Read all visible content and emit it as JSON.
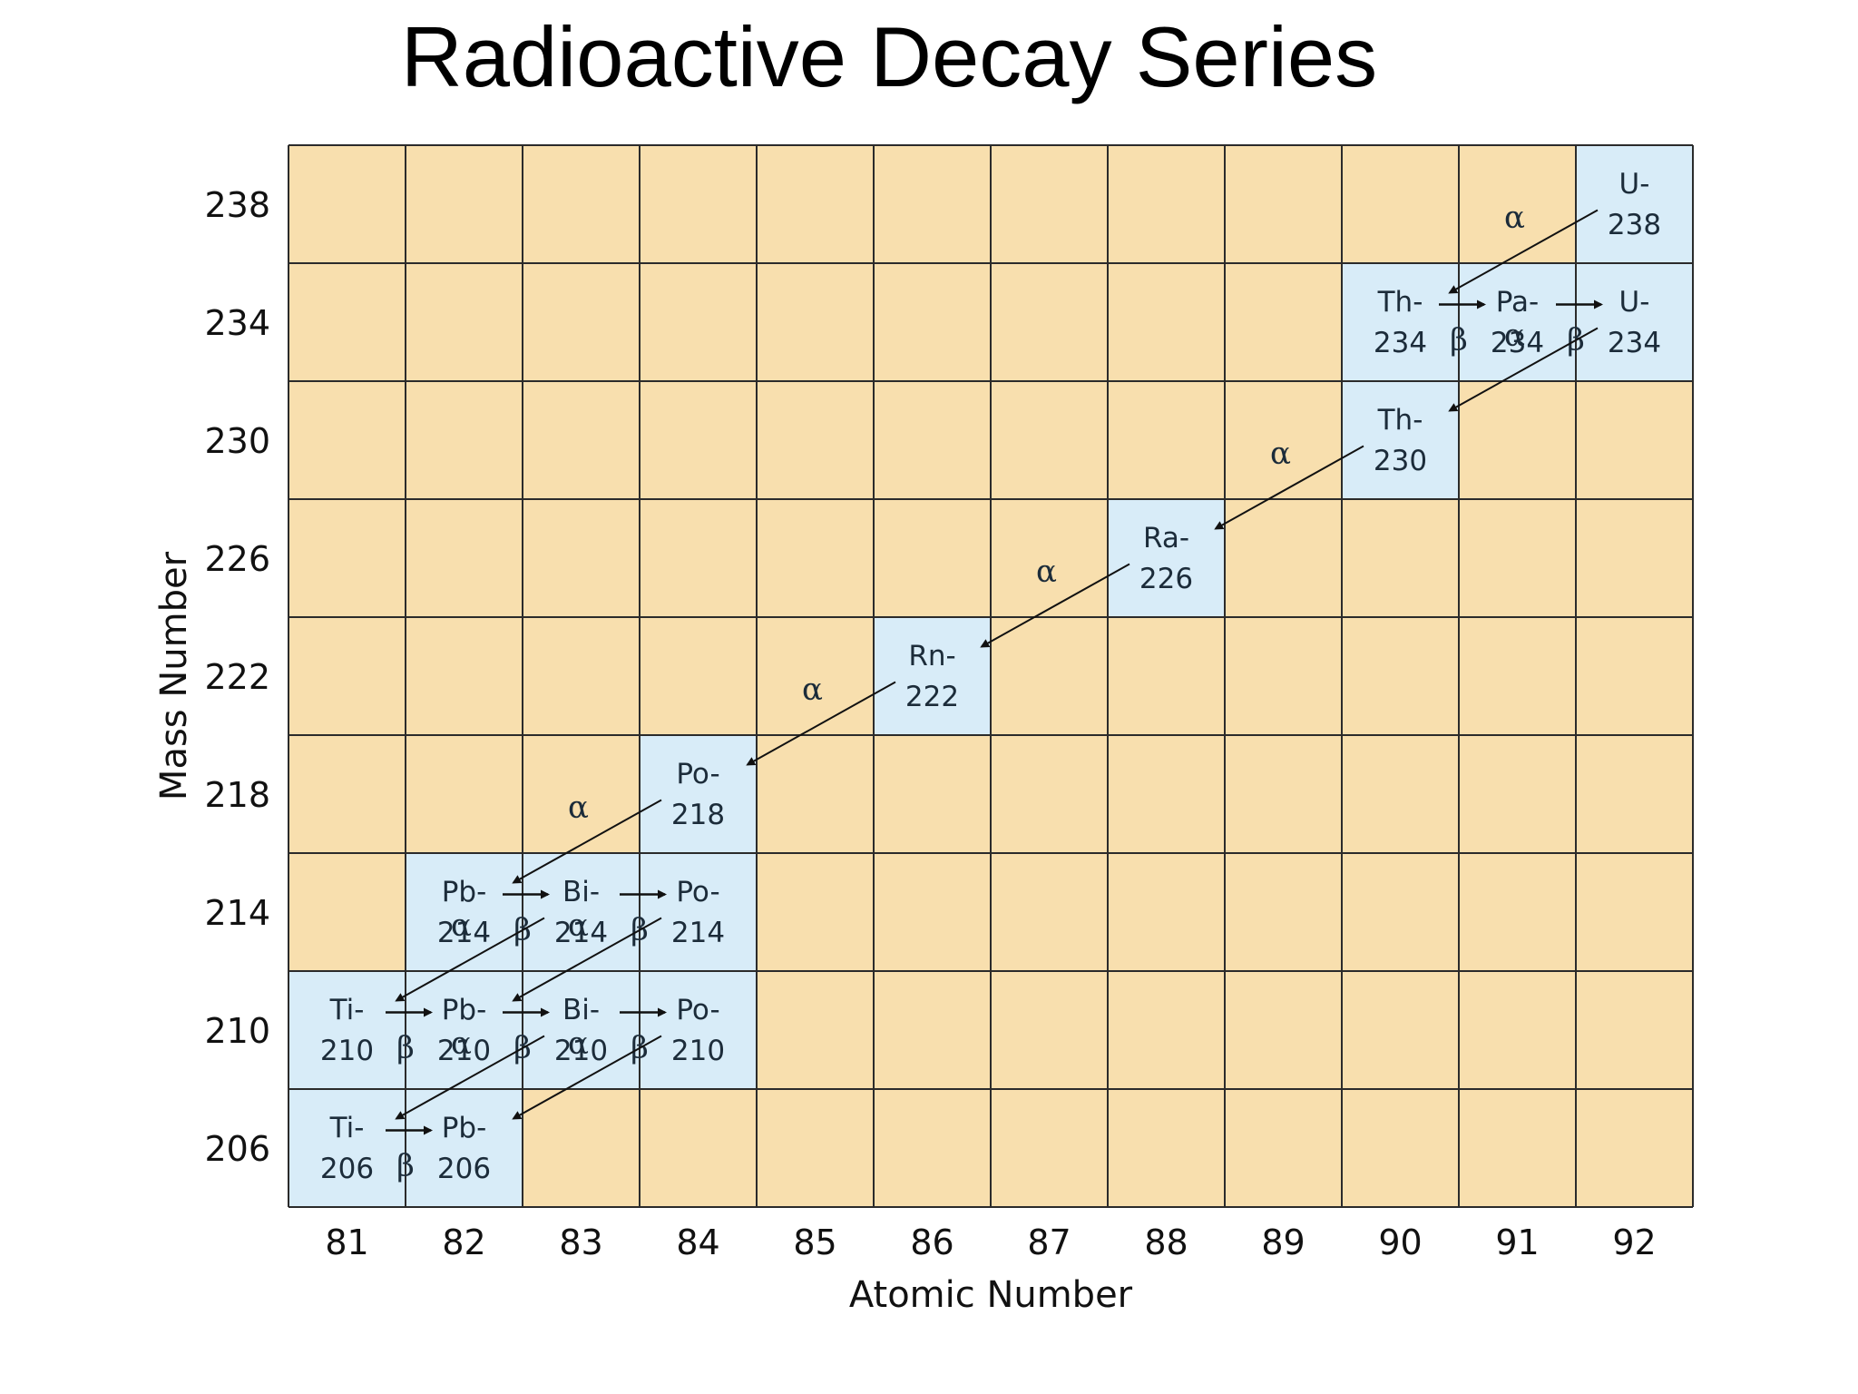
{
  "title": "Radioactive Decay Series",
  "colors": {
    "empty_cell": "#f8dfae",
    "isotope_cell": "#d8ecf8",
    "grid": "#2b2b2b",
    "arrow": "#111111",
    "isotope_text": "#1c2c3a"
  },
  "chart_data": {
    "type": "diagram",
    "xlabel": "Atomic Number",
    "ylabel": "Mass Number",
    "x_ticks": [
      "81",
      "82",
      "83",
      "84",
      "85",
      "86",
      "87",
      "88",
      "89",
      "90",
      "91",
      "92"
    ],
    "y_ticks": [
      "238",
      "234",
      "230",
      "226",
      "222",
      "218",
      "214",
      "210",
      "206"
    ],
    "isotopes": [
      {
        "id": "u238",
        "z": 92,
        "a": 238,
        "symbol": "U-",
        "mass": "238"
      },
      {
        "id": "th234",
        "z": 90,
        "a": 234,
        "symbol": "Th-",
        "mass": "234"
      },
      {
        "id": "pa234",
        "z": 91,
        "a": 234,
        "symbol": "Pa-",
        "mass": "234"
      },
      {
        "id": "u234",
        "z": 92,
        "a": 234,
        "symbol": "U-",
        "mass": "234"
      },
      {
        "id": "th230",
        "z": 90,
        "a": 230,
        "symbol": "Th-",
        "mass": "230"
      },
      {
        "id": "ra226",
        "z": 88,
        "a": 226,
        "symbol": "Ra-",
        "mass": "226"
      },
      {
        "id": "rn222",
        "z": 86,
        "a": 222,
        "symbol": "Rn-",
        "mass": "222"
      },
      {
        "id": "po218",
        "z": 84,
        "a": 218,
        "symbol": "Po-",
        "mass": "218"
      },
      {
        "id": "pb214",
        "z": 82,
        "a": 214,
        "symbol": "Pb-",
        "mass": "214"
      },
      {
        "id": "bi214",
        "z": 83,
        "a": 214,
        "symbol": "Bi-",
        "mass": "214"
      },
      {
        "id": "po214",
        "z": 84,
        "a": 214,
        "symbol": "Po-",
        "mass": "214"
      },
      {
        "id": "ti210",
        "z": 81,
        "a": 210,
        "symbol": "Ti-",
        "mass": "210"
      },
      {
        "id": "pb210",
        "z": 82,
        "a": 210,
        "symbol": "Pb-",
        "mass": "210"
      },
      {
        "id": "bi210",
        "z": 83,
        "a": 210,
        "symbol": "Bi-",
        "mass": "210"
      },
      {
        "id": "po210",
        "z": 84,
        "a": 210,
        "symbol": "Po-",
        "mass": "210"
      },
      {
        "id": "ti206",
        "z": 81,
        "a": 206,
        "symbol": "Ti-",
        "mass": "206"
      },
      {
        "id": "pb206",
        "z": 82,
        "a": 206,
        "symbol": "Pb-",
        "mass": "206"
      }
    ],
    "decays": [
      {
        "from": "u238",
        "to": "th234",
        "mode": "alpha",
        "label": "α"
      },
      {
        "from": "th234",
        "to": "pa234",
        "mode": "beta",
        "label": "β"
      },
      {
        "from": "pa234",
        "to": "u234",
        "mode": "beta",
        "label": "β"
      },
      {
        "from": "u234",
        "to": "th230",
        "mode": "alpha",
        "label": "α"
      },
      {
        "from": "th230",
        "to": "ra226",
        "mode": "alpha",
        "label": "α"
      },
      {
        "from": "ra226",
        "to": "rn222",
        "mode": "alpha",
        "label": "α"
      },
      {
        "from": "rn222",
        "to": "po218",
        "mode": "alpha",
        "label": "α"
      },
      {
        "from": "po218",
        "to": "pb214",
        "mode": "alpha",
        "label": "α"
      },
      {
        "from": "pb214",
        "to": "bi214",
        "mode": "beta",
        "label": "β"
      },
      {
        "from": "bi214",
        "to": "po214",
        "mode": "beta",
        "label": "β"
      },
      {
        "from": "bi214",
        "to": "ti210",
        "mode": "alpha",
        "label": "α"
      },
      {
        "from": "po214",
        "to": "pb210",
        "mode": "alpha",
        "label": "α"
      },
      {
        "from": "ti210",
        "to": "pb210",
        "mode": "beta",
        "label": "β"
      },
      {
        "from": "pb210",
        "to": "bi210",
        "mode": "beta",
        "label": "β"
      },
      {
        "from": "bi210",
        "to": "po210",
        "mode": "beta",
        "label": "β"
      },
      {
        "from": "bi210",
        "to": "ti206",
        "mode": "alpha",
        "label": "α"
      },
      {
        "from": "po210",
        "to": "pb206",
        "mode": "alpha",
        "label": "α"
      },
      {
        "from": "ti206",
        "to": "pb206",
        "mode": "beta",
        "label": "β"
      }
    ]
  }
}
